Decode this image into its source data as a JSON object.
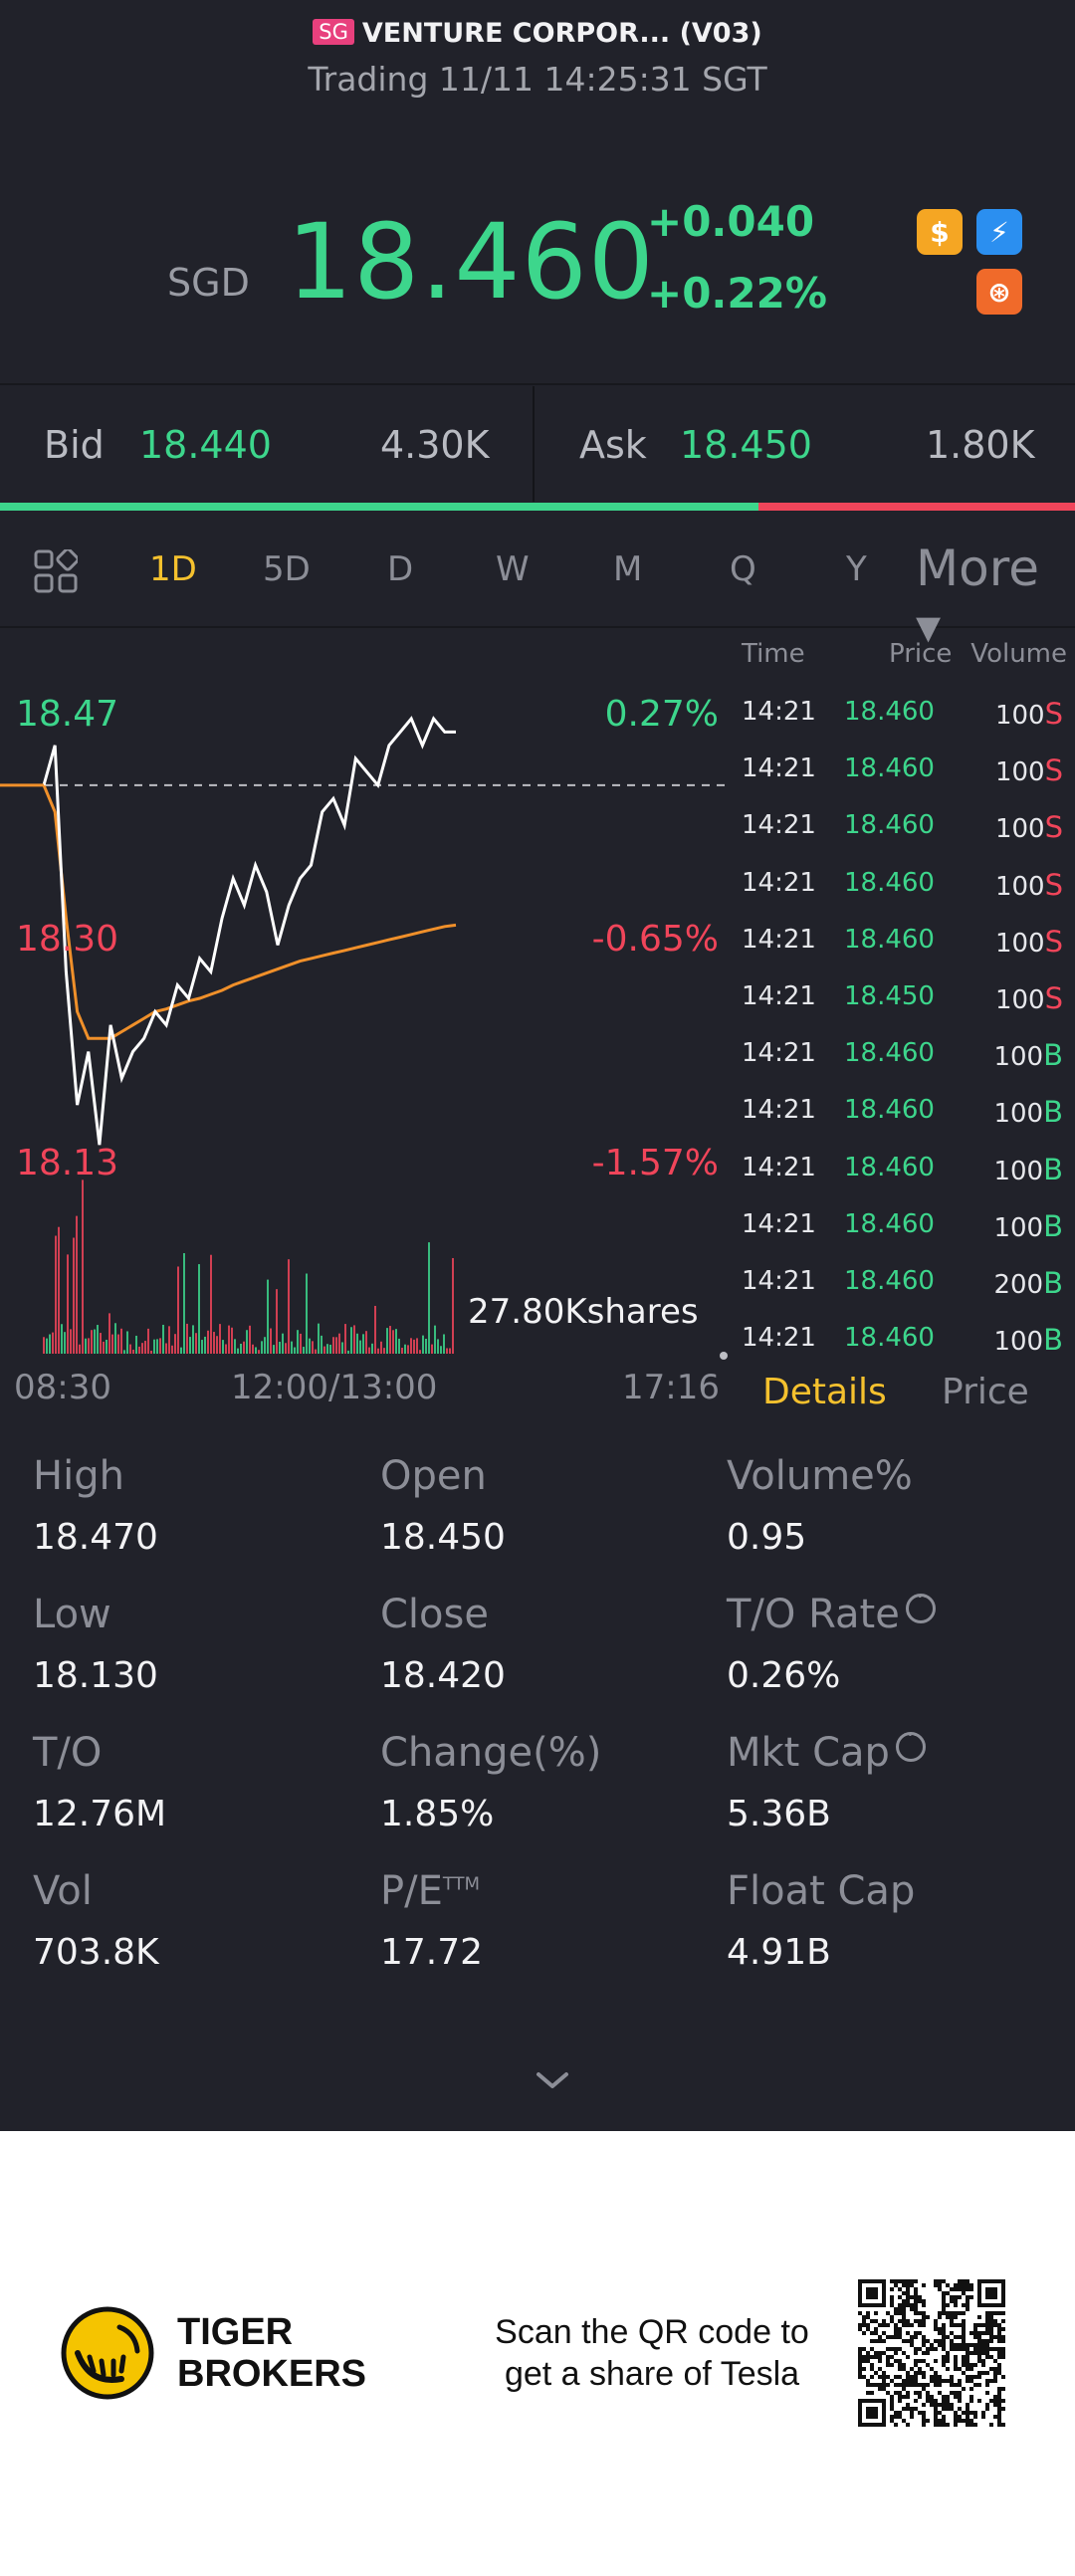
{
  "header": {
    "market_badge": "SG",
    "title": "VENTURE CORPOR... (V03)",
    "status": "Trading 11/11 14:25:31 SGT"
  },
  "quote": {
    "currency": "SGD",
    "price": "18.460",
    "change": "+0.040",
    "change_pct": "+0.22%",
    "flags": [
      {
        "icon": "dollar-icon",
        "glyph": "$",
        "color": "#f5a623"
      },
      {
        "icon": "lightning-icon",
        "glyph": "⚡",
        "color": "#2b8ff0"
      },
      {
        "icon": "lottery-icon",
        "glyph": "⊛",
        "color": "#f06a2a"
      }
    ]
  },
  "bid_ask": {
    "bid_label": "Bid",
    "bid_price": "18.440",
    "bid_size": "4.30K",
    "ask_label": "Ask",
    "ask_price": "18.450",
    "ask_size": "1.80K",
    "bid_ratio": 0.706
  },
  "tabs": {
    "items": [
      "1D",
      "5D",
      "D",
      "W",
      "M",
      "Q",
      "Y"
    ],
    "active": "1D",
    "more": "More ▾"
  },
  "chart": {
    "y_labels": [
      {
        "price": "18.47",
        "pct": "0.27%"
      },
      {
        "price": "18.30",
        "pct": "-0.65%"
      },
      {
        "price": "18.13",
        "pct": "-1.57%"
      }
    ],
    "x_labels": [
      "08:30",
      "12:00/13:00",
      "17:16"
    ],
    "volume_label": "27.80Kshares",
    "colors": {
      "price_line": "#ffffff",
      "avg_line": "#f0902a",
      "up": "#3dd68c",
      "down": "#f0455a",
      "prev_close_line": "#bdbec4"
    }
  },
  "chart_data": {
    "type": "line",
    "title": "",
    "xlabel": "",
    "ylabel": "",
    "ylim": [
      18.13,
      18.47
    ],
    "prev_close": 18.42,
    "x_ticks": [
      "08:30",
      "12:00/13:00",
      "17:16"
    ],
    "y_ticks": [
      18.47,
      18.3,
      18.13
    ],
    "series": [
      {
        "values": [
          18.42,
          18.45,
          18.28,
          18.18,
          18.22,
          18.15,
          18.24,
          18.2,
          18.22,
          18.23,
          18.25,
          18.24,
          18.27,
          18.26,
          18.29,
          18.28,
          18.32,
          18.35,
          18.33,
          18.36,
          18.34,
          18.3,
          18.33,
          18.35,
          18.36,
          18.4,
          18.41,
          18.39,
          18.44,
          18.43,
          18.42,
          18.45,
          18.46,
          18.47,
          18.45,
          18.47,
          18.46,
          18.46
        ]
      },
      {
        "values": [
          18.42,
          18.4,
          18.32,
          18.25,
          18.23,
          18.23,
          18.23,
          18.235,
          18.24,
          18.245,
          18.25,
          18.252,
          18.255,
          18.258,
          18.26,
          18.263,
          18.266,
          18.27,
          18.273,
          18.276,
          18.279,
          18.282,
          18.285,
          18.288,
          18.29,
          18.292,
          18.294,
          18.296,
          18.298,
          18.3,
          18.302,
          18.304,
          18.306,
          18.308,
          18.31,
          18.312,
          18.314,
          18.315
        ]
      }
    ]
  },
  "trades": {
    "headers": [
      "Time",
      "Price",
      "Volume"
    ],
    "rows": [
      {
        "time": "14:21",
        "price": "18.460",
        "vol": "100",
        "side": "S"
      },
      {
        "time": "14:21",
        "price": "18.460",
        "vol": "100",
        "side": "S"
      },
      {
        "time": "14:21",
        "price": "18.460",
        "vol": "100",
        "side": "S"
      },
      {
        "time": "14:21",
        "price": "18.460",
        "vol": "100",
        "side": "S"
      },
      {
        "time": "14:21",
        "price": "18.460",
        "vol": "100",
        "side": "S"
      },
      {
        "time": "14:21",
        "price": "18.450",
        "vol": "100",
        "side": "S"
      },
      {
        "time": "14:21",
        "price": "18.460",
        "vol": "100",
        "side": "B"
      },
      {
        "time": "14:21",
        "price": "18.460",
        "vol": "100",
        "side": "B"
      },
      {
        "time": "14:21",
        "price": "18.460",
        "vol": "100",
        "side": "B"
      },
      {
        "time": "14:21",
        "price": "18.460",
        "vol": "100",
        "side": "B"
      },
      {
        "time": "14:21",
        "price": "18.460",
        "vol": "200",
        "side": "B"
      },
      {
        "time": "14:21",
        "price": "18.460",
        "vol": "100",
        "side": "B"
      }
    ],
    "tab_details": "Details",
    "tab_price": "Price"
  },
  "stats": [
    {
      "label": "High",
      "value": "18.470"
    },
    {
      "label": "Open",
      "value": "18.450"
    },
    {
      "label": "Volume%",
      "value": "0.95"
    },
    {
      "label": "Low",
      "value": "18.130"
    },
    {
      "label": "Close",
      "value": "18.420"
    },
    {
      "label": "T/O Rate",
      "value": "0.26%",
      "info": true
    },
    {
      "label": "T/O",
      "value": "12.76M"
    },
    {
      "label": "Change(%)",
      "value": "1.85%"
    },
    {
      "label": "Mkt Cap",
      "value": "5.36B",
      "info": true
    },
    {
      "label": "Vol",
      "value": "703.8K"
    },
    {
      "label": "P/E",
      "sup": "TTM",
      "value": "17.72"
    },
    {
      "label": "Float Cap",
      "value": "4.91B"
    }
  ],
  "footer": {
    "brand_line1": "TIGER",
    "brand_line2": "BROKERS",
    "promo_line1": "Scan the QR code to",
    "promo_line2": "get a share of Tesla"
  }
}
